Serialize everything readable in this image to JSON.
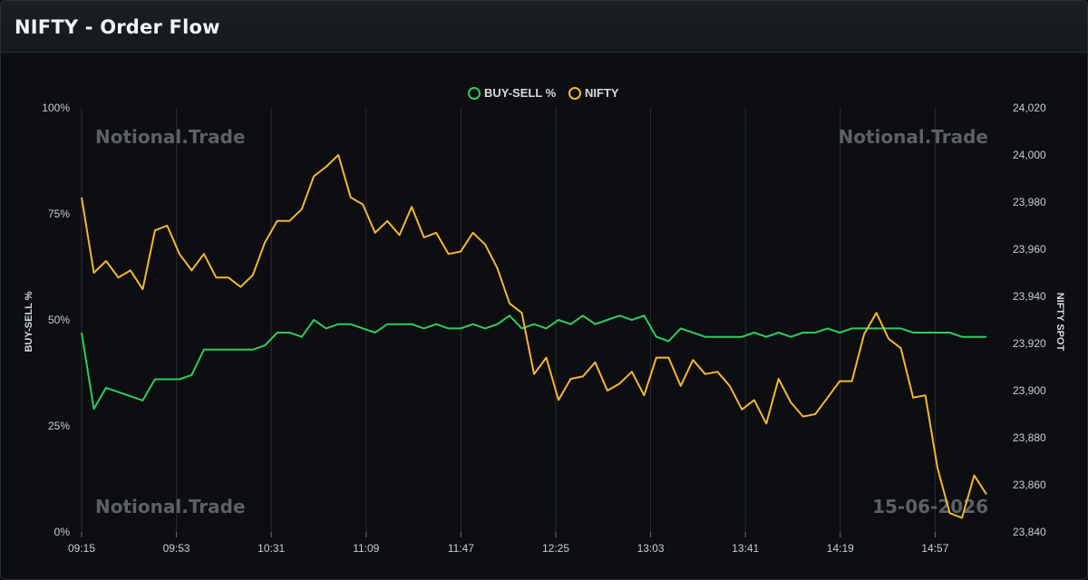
{
  "header": {
    "title": "NIFTY - Order Flow"
  },
  "watermarks": {
    "top_left": "Notional.Trade",
    "top_right": "Notional.Trade",
    "bottom_left": "Notional.Trade",
    "bottom_right": "15-06-2026"
  },
  "colors": {
    "buy_sell": "#2ecc5f",
    "nifty": "#f5b731",
    "grid": "#2a2e33"
  },
  "chart_data": {
    "type": "line",
    "legend_position": "top-center",
    "grid": true,
    "x_tick_labels": [
      "09:15",
      "09:53",
      "10:31",
      "11:09",
      "11:47",
      "12:25",
      "13:03",
      "13:41",
      "14:19",
      "14:57"
    ],
    "y_left": {
      "label": "BUY-SELL %",
      "range": [
        0,
        100
      ],
      "ticks": [
        "0%",
        "25%",
        "50%",
        "75%",
        "100%"
      ]
    },
    "y_right": {
      "label": "NIFTY SPOT",
      "range": [
        23840,
        24020
      ],
      "ticks": [
        "23,840",
        "23,860",
        "23,880",
        "23,900",
        "23,920",
        "23,940",
        "23,960",
        "23,980",
        "24,000",
        "24,020"
      ]
    },
    "series": [
      {
        "name": "BUY-SELL %",
        "axis": "left",
        "values": [
          47,
          29,
          34,
          33,
          32,
          31,
          36,
          36,
          36,
          37,
          43,
          43,
          43,
          43,
          43,
          44,
          47,
          47,
          46,
          50,
          48,
          49,
          49,
          48,
          47,
          49,
          49,
          49,
          48,
          49,
          48,
          48,
          49,
          48,
          49,
          51,
          48,
          49,
          48,
          50,
          49,
          51,
          49,
          50,
          51,
          50,
          51,
          46,
          45,
          48,
          47,
          46,
          46,
          46,
          46,
          47,
          46,
          47,
          46,
          47,
          47,
          48,
          47,
          48,
          48,
          48,
          48,
          48,
          47,
          47,
          47,
          47,
          46,
          46,
          46
        ]
      },
      {
        "name": "NIFTY",
        "axis": "right",
        "values": [
          23982,
          23950,
          23955,
          23948,
          23951,
          23943,
          23968,
          23970,
          23958,
          23951,
          23958,
          23948,
          23948,
          23944,
          23949,
          23963,
          23972,
          23972,
          23977,
          23991,
          23995,
          24000,
          23982,
          23979,
          23967,
          23972,
          23966,
          23978,
          23965,
          23967,
          23958,
          23959,
          23967,
          23962,
          23952,
          23937,
          23933,
          23907,
          23914,
          23896,
          23905,
          23906,
          23912,
          23900,
          23903,
          23908,
          23898,
          23914,
          23914,
          23902,
          23913,
          23907,
          23908,
          23902,
          23892,
          23896,
          23886,
          23905,
          23895,
          23889,
          23890,
          23897,
          23904,
          23904,
          23924,
          23933,
          23922,
          23918,
          23897,
          23898,
          23867,
          23848,
          23846,
          23864,
          23856
        ]
      }
    ]
  }
}
